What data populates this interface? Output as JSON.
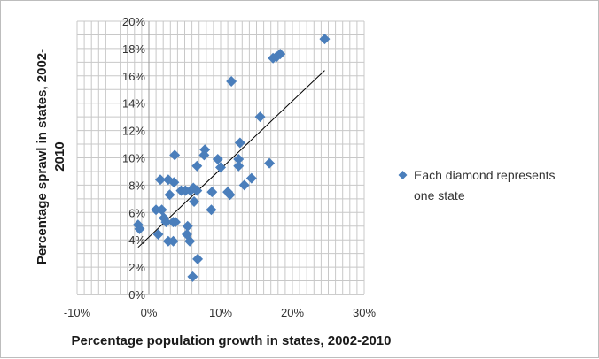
{
  "chart_data": {
    "type": "scatter",
    "title": "",
    "xlabel": "Percentage population growth in states, 2002-2010",
    "ylabel_line1": "Percentage sprawl in states, 2002-",
    "ylabel_line2": "2010",
    "xlim": [
      -0.1,
      0.3
    ],
    "ylim": [
      0.0,
      0.2
    ],
    "x_ticks": [
      -0.1,
      0.0,
      0.1,
      0.2,
      0.3
    ],
    "x_tick_labels": [
      "-10%",
      "0%",
      "10%",
      "20%",
      "30%"
    ],
    "y_ticks": [
      0.0,
      0.02,
      0.04,
      0.06,
      0.08,
      0.1,
      0.12,
      0.14,
      0.16,
      0.18,
      0.2
    ],
    "y_tick_labels": [
      "0%",
      "2%",
      "4%",
      "6%",
      "8%",
      "10%",
      "12%",
      "14%",
      "16%",
      "18%",
      "20%"
    ],
    "x_minor_step": 0.01,
    "y_minor_step": 0.01,
    "grid": true,
    "legend_position": "right",
    "legend_label_line1": "Each diamond represents",
    "legend_label_line2": "one state",
    "marker_color": "#4a7ebb",
    "trendline_color": "#000000",
    "trendline": {
      "x1": -0.015,
      "y1": 0.0345,
      "x2": 0.245,
      "y2": 0.164
    },
    "series": [
      {
        "points": [
          [
            0.245,
            0.187
          ],
          [
            0.183,
            0.176
          ],
          [
            0.178,
            0.174
          ],
          [
            0.173,
            0.173
          ],
          [
            0.115,
            0.156
          ],
          [
            0.155,
            0.13
          ],
          [
            0.127,
            0.111
          ],
          [
            0.078,
            0.106
          ],
          [
            0.077,
            0.102
          ],
          [
            0.036,
            0.102
          ],
          [
            0.125,
            0.099
          ],
          [
            0.168,
            0.096
          ],
          [
            0.096,
            0.099
          ],
          [
            0.1,
            0.093
          ],
          [
            0.125,
            0.094
          ],
          [
            0.067,
            0.094
          ],
          [
            0.143,
            0.085
          ],
          [
            0.133,
            0.08
          ],
          [
            0.016,
            0.084
          ],
          [
            0.027,
            0.084
          ],
          [
            0.035,
            0.082
          ],
          [
            0.045,
            0.076
          ],
          [
            0.051,
            0.076
          ],
          [
            0.058,
            0.076
          ],
          [
            0.067,
            0.076
          ],
          [
            0.062,
            0.078
          ],
          [
            0.088,
            0.075
          ],
          [
            0.11,
            0.075
          ],
          [
            0.113,
            0.073
          ],
          [
            0.029,
            0.073
          ],
          [
            0.063,
            0.068
          ],
          [
            0.087,
            0.062
          ],
          [
            0.018,
            0.062
          ],
          [
            0.01,
            0.062
          ],
          [
            0.021,
            0.056
          ],
          [
            0.024,
            0.053
          ],
          [
            0.034,
            0.053
          ],
          [
            0.037,
            0.053
          ],
          [
            0.054,
            0.05
          ],
          [
            -0.015,
            0.051
          ],
          [
            -0.013,
            0.048
          ],
          [
            0.013,
            0.044
          ],
          [
            0.053,
            0.044
          ],
          [
            0.027,
            0.039
          ],
          [
            0.034,
            0.039
          ],
          [
            0.057,
            0.039
          ],
          [
            0.068,
            0.026
          ],
          [
            0.061,
            0.013
          ]
        ]
      }
    ]
  }
}
